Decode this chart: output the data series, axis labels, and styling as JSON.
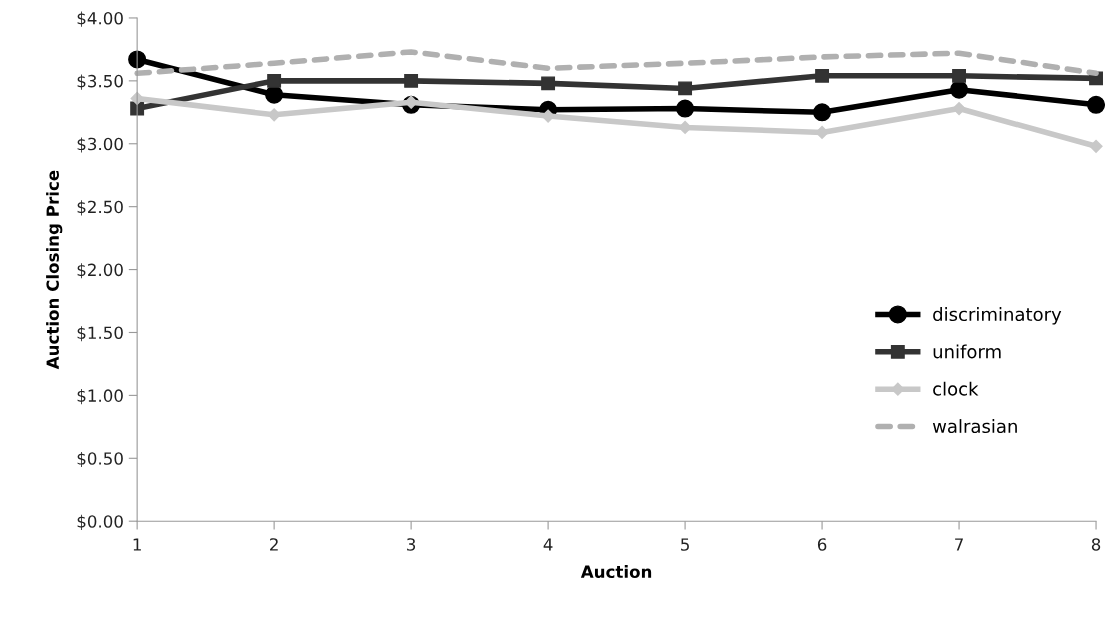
{
  "chart_data": {
    "type": "line",
    "xlabel": "Auction",
    "ylabel": "Auction Closing Price",
    "x": [
      1,
      2,
      3,
      4,
      5,
      6,
      7,
      8
    ],
    "xlim": [
      1,
      8
    ],
    "xticks": [
      1,
      2,
      3,
      4,
      5,
      6,
      7,
      8
    ],
    "ylim": [
      0,
      4
    ],
    "yticks": [
      {
        "value": 0,
        "label": "$0.00"
      },
      {
        "value": 0.5,
        "label": "$0.50"
      },
      {
        "value": 1,
        "label": "$1.00"
      },
      {
        "value": 1.5,
        "label": "$1.50"
      },
      {
        "value": 2,
        "label": "$2.00"
      },
      {
        "value": 2.5,
        "label": "$2.50"
      },
      {
        "value": 3,
        "label": "$3.00"
      },
      {
        "value": 3.5,
        "label": "$3.50"
      },
      {
        "value": 4,
        "label": "$4.00"
      }
    ],
    "grid": false,
    "legend": "bottom right",
    "series": [
      {
        "name": "discriminatory",
        "color": "#000000",
        "marker": "circle",
        "line_style": "solid",
        "values": [
          3.67,
          3.39,
          3.31,
          3.27,
          3.28,
          3.25,
          3.43,
          3.31
        ]
      },
      {
        "name": "uniform",
        "color": "#333333",
        "marker": "square",
        "line_style": "solid",
        "values": [
          3.28,
          3.5,
          3.5,
          3.48,
          3.44,
          3.54,
          3.54,
          3.52
        ]
      },
      {
        "name": "clock",
        "color": "#c8c8c8",
        "marker": "diamond",
        "line_style": "solid",
        "values": [
          3.36,
          3.23,
          3.33,
          3.22,
          3.13,
          3.09,
          3.28,
          2.98
        ]
      },
      {
        "name": "walrasian",
        "color": "#b0b0b0",
        "marker": "none",
        "line_style": "dashed",
        "values": [
          3.56,
          3.64,
          3.73,
          3.6,
          3.64,
          3.69,
          3.72,
          3.56
        ]
      }
    ]
  }
}
